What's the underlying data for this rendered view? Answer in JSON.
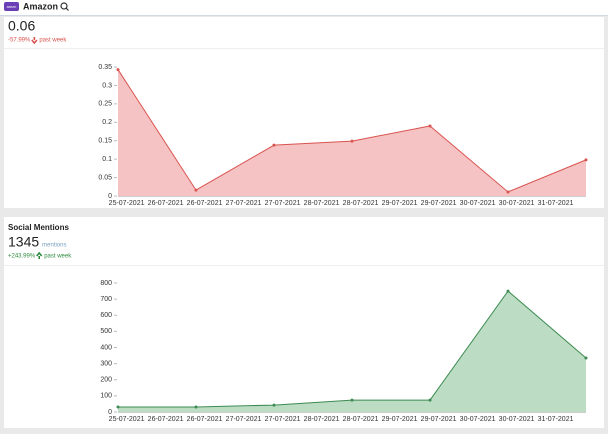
{
  "header": {
    "badge": "amzn",
    "title": "Amazon"
  },
  "chart_data": [
    {
      "type": "area",
      "metric": "0.06",
      "change": "-57.99%",
      "change_suffix": "past week",
      "x": [
        "25-07-2021",
        "26-07-2021",
        "27-07-2021",
        "28-07-2021",
        "29-07-2021",
        "30-07-2021",
        "31-07-2021"
      ],
      "values": [
        0.343,
        0.016,
        0.138,
        0.149,
        0.19,
        0.011,
        0.098
      ],
      "xticks": [
        "25-07-2021",
        "26-07-2021",
        "26-07-2021",
        "27-07-2021",
        "27-07-2021",
        "28-07-2021",
        "28-07-2021",
        "29-07-2021",
        "29-07-2021",
        "30-07-2021",
        "30-07-2021",
        "31-07-2021"
      ],
      "ylim": [
        0,
        0.35
      ],
      "yticks": [
        0,
        0.05,
        0.1,
        0.15,
        0.2,
        0.25,
        0.3,
        0.35
      ],
      "color": "#d9534f",
      "fill_color": "#f5c3c3",
      "change_color": "#d9534f"
    },
    {
      "type": "area",
      "title": "Social Mentions",
      "metric": "1345",
      "unit": "mentions",
      "change": "+243.99%",
      "change_suffix": "past week",
      "x": [
        "25-07-2021",
        "26-07-2021",
        "27-07-2021",
        "28-07-2021",
        "29-07-2021",
        "30-07-2021",
        "31-07-2021"
      ],
      "values": [
        31,
        31,
        43,
        74,
        74,
        750,
        335
      ],
      "xticks": [
        "25-07-2021",
        "26-07-2021",
        "26-07-2021",
        "27-07-2021",
        "27-07-2021",
        "28-07-2021",
        "28-07-2021",
        "29-07-2021",
        "29-07-2021",
        "30-07-2021",
        "30-07-2021",
        "31-07-2021"
      ],
      "ylim": [
        0,
        800
      ],
      "yticks": [
        0,
        100,
        200,
        300,
        400,
        500,
        600,
        700,
        800
      ],
      "color": "#3d8b52",
      "fill_color": "#bcdcc3",
      "change_color": "#2e8b3e"
    }
  ]
}
